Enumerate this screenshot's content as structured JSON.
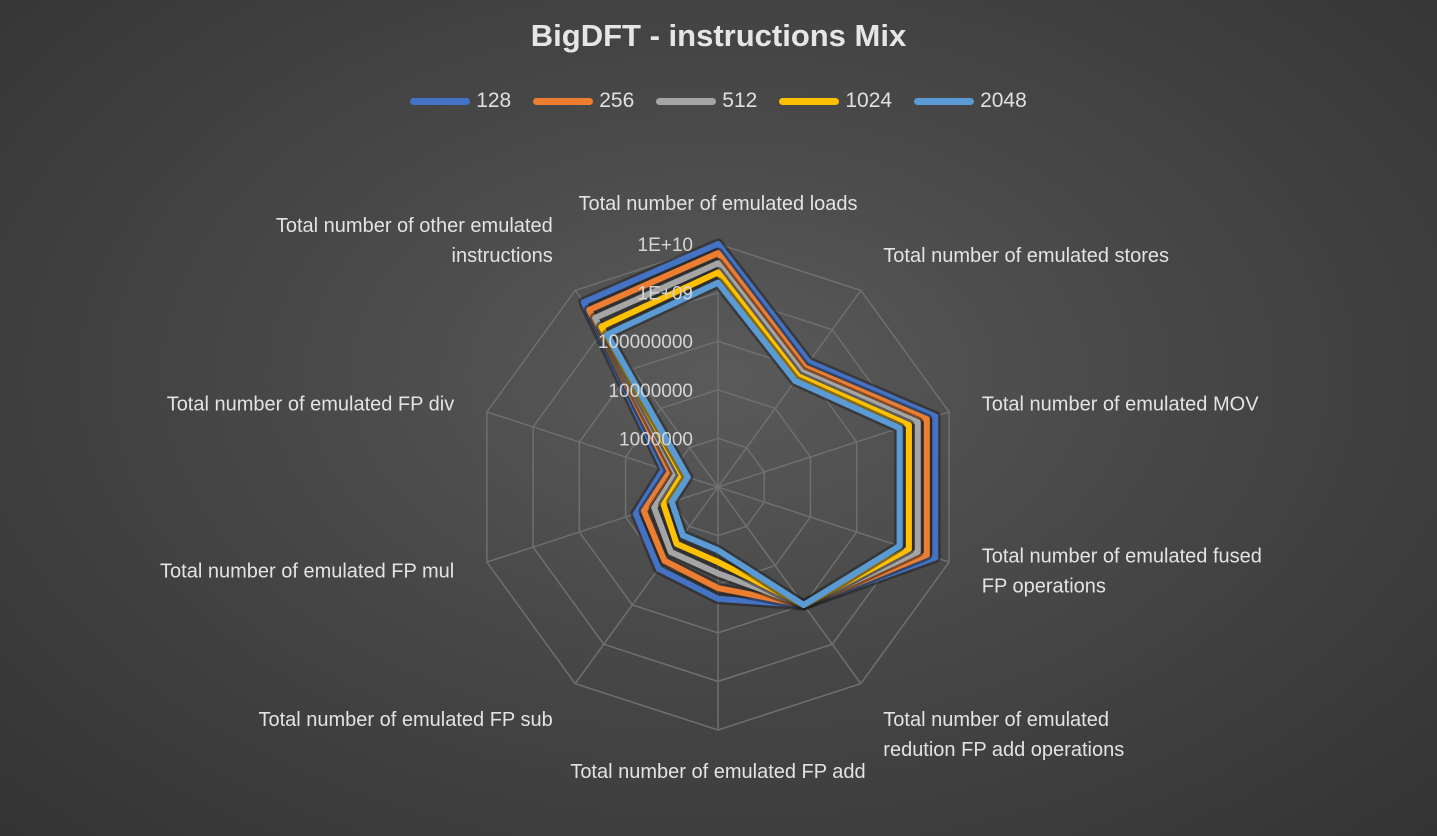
{
  "chart_data": {
    "type": "radar",
    "title": "BigDFT - instructions Mix",
    "legend_position": "top",
    "scale": "log",
    "range": [
      100000,
      10000000000
    ],
    "ticks": [
      "1000000",
      "10000000",
      "100000000",
      "1E+09",
      "1E+10"
    ],
    "categories": [
      [
        "Total number of emulated loads"
      ],
      [
        "Total number of emulated stores"
      ],
      [
        "Total number of emulated MOV"
      ],
      [
        "Total number of emulated fused",
        "FP operations"
      ],
      [
        "Total number of emulated",
        "redution FP add operations"
      ],
      [
        "Total number of emulated FP add"
      ],
      [
        "Total number of emulated FP sub"
      ],
      [
        "Total number of emulated FP mul"
      ],
      [
        "Total number of emulated FP div"
      ],
      [
        "Total number of other emulated",
        "instructions"
      ]
    ],
    "series": [
      {
        "name": "128",
        "color": "#4472c4",
        "values": [
          10000000000,
          150000000,
          5000000000,
          5000000000,
          100000000,
          20000000,
          12000000,
          6000000,
          1500000,
          5000000000
        ]
      },
      {
        "name": "256",
        "color": "#ed7d31",
        "values": [
          6500000000,
          110000000,
          3300000000,
          3300000000,
          100000000,
          12000000,
          7500000,
          4000000,
          1100000,
          3200000000
        ]
      },
      {
        "name": "512",
        "color": "#a5a5a5",
        "values": [
          4000000000,
          85000000,
          2100000000,
          2100000000,
          100000000,
          6000000,
          4500000,
          2400000,
          800000,
          2000000000
        ]
      },
      {
        "name": "1024",
        "color": "#ffc000",
        "values": [
          2600000000,
          65000000,
          1350000000,
          1350000000,
          100000000,
          3500000,
          2800000,
          1500000,
          600000,
          1200000000
        ]
      },
      {
        "name": "2048",
        "color": "#5b9bd5",
        "values": [
          1600000000,
          50000000,
          850000000,
          850000000,
          100000000,
          2000000,
          1700000,
          1000000,
          450000,
          750000000
        ]
      }
    ]
  }
}
